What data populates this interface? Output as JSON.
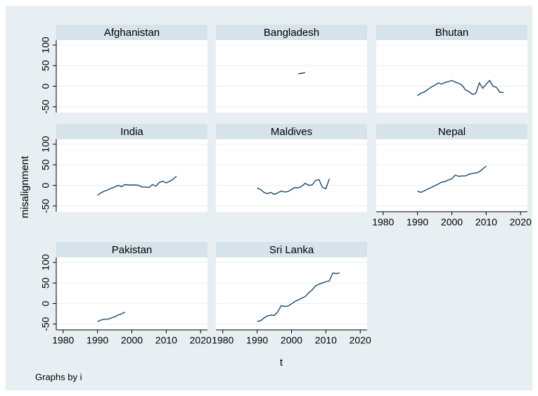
{
  "y_label": "misalignment",
  "x_label": "t",
  "note": "Graphs by i",
  "chart_data": [
    {
      "type": "line",
      "title": "Afghanistan",
      "color": "#1a476f",
      "x": [],
      "values": [],
      "xlim": [
        1978,
        2022
      ],
      "ylim": [
        -64,
        112
      ],
      "yticks": [
        -50,
        0,
        50,
        100
      ]
    },
    {
      "type": "line",
      "title": "Bangladesh",
      "color": "#1a476f",
      "x": [
        2002,
        2004
      ],
      "values": [
        30,
        33
      ],
      "xlim": [
        1978,
        2022
      ],
      "ylim": [
        -64,
        112
      ],
      "yticks": [
        -50,
        0,
        50,
        100
      ]
    },
    {
      "type": "line",
      "title": "Bhutan",
      "color": "#1a476f",
      "x": [
        1990,
        1991,
        1992,
        1993,
        1994,
        1995,
        1996,
        1997,
        1998,
        1999,
        2000,
        2001,
        2002,
        2003,
        2004,
        2005,
        2006,
        2007,
        2008,
        2009,
        2010,
        2011,
        2012,
        2013,
        2014,
        2015
      ],
      "values": [
        -23,
        -17,
        -14,
        -8,
        -2,
        2,
        8,
        5,
        9,
        11,
        14,
        10,
        7,
        2,
        -9,
        -13,
        -20,
        -17,
        8,
        -5,
        5,
        14,
        0,
        -3,
        -15,
        -15
      ],
      "xlim": [
        1978,
        2022
      ],
      "ylim": [
        -64,
        112
      ],
      "yticks": [
        -50,
        0,
        50,
        100
      ]
    },
    {
      "type": "line",
      "title": "India",
      "color": "#1a476f",
      "x": [
        1990,
        1991,
        1992,
        1993,
        1994,
        1995,
        1996,
        1997,
        1998,
        1999,
        2000,
        2001,
        2002,
        2003,
        2004,
        2005,
        2006,
        2007,
        2008,
        2009,
        2010,
        2011,
        2012,
        2013
      ],
      "values": [
        -24,
        -18,
        -14,
        -11,
        -7,
        -4,
        0,
        -3,
        2,
        1,
        1,
        1,
        0,
        -4,
        -4,
        -5,
        2,
        -2,
        7,
        10,
        6,
        10,
        15,
        22
      ],
      "xlim": [
        1978,
        2022
      ],
      "ylim": [
        -64,
        112
      ],
      "yticks": [
        -50,
        0,
        50,
        100
      ]
    },
    {
      "type": "line",
      "title": "Maldives",
      "color": "#1a476f",
      "x": [
        1990,
        1991,
        1992,
        1993,
        1994,
        1995,
        1996,
        1997,
        1998,
        1999,
        2000,
        2001,
        2002,
        2003,
        2004,
        2005,
        2006,
        2007,
        2008,
        2009,
        2010,
        2011
      ],
      "values": [
        -6,
        -10,
        -17,
        -20,
        -17,
        -22,
        -18,
        -14,
        -16,
        -15,
        -10,
        -5,
        -6,
        -2,
        5,
        0,
        1,
        12,
        14,
        -5,
        -8,
        16
      ],
      "xlim": [
        1978,
        2022
      ],
      "ylim": [
        -64,
        112
      ],
      "yticks": [
        -50,
        0,
        50,
        100
      ]
    },
    {
      "type": "line",
      "title": "Nepal",
      "color": "#1a476f",
      "x": [
        1990,
        1991,
        1992,
        1993,
        1994,
        1995,
        1996,
        1997,
        1998,
        1999,
        2000,
        2001,
        2002,
        2003,
        2004,
        2005,
        2006,
        2007,
        2008,
        2009,
        2010
      ],
      "values": [
        -14,
        -17,
        -13,
        -9,
        -5,
        -1,
        3,
        8,
        9,
        13,
        16,
        25,
        22,
        23,
        23,
        27,
        29,
        30,
        33,
        40,
        47
      ],
      "xlim": [
        1978,
        2022
      ],
      "ylim": [
        -64,
        112
      ],
      "yticks": [
        -50,
        0,
        50,
        100
      ],
      "xticks": [
        1980,
        1990,
        2000,
        2010,
        2020
      ]
    },
    {
      "type": "line",
      "title": "Pakistan",
      "color": "#1a476f",
      "x": [
        1990,
        1991,
        1992,
        1993,
        1994,
        1995,
        1996,
        1997,
        1998
      ],
      "values": [
        -44,
        -40,
        -38,
        -38,
        -35,
        -32,
        -28,
        -25,
        -21
      ],
      "xlim": [
        1978,
        2022
      ],
      "ylim": [
        -64,
        112
      ],
      "yticks": [
        -50,
        0,
        50,
        100
      ],
      "xticks": [
        1980,
        1990,
        2000,
        2010,
        2020
      ]
    },
    {
      "type": "line",
      "title": "Sri Lanka",
      "color": "#1a476f",
      "x": [
        1990,
        1991,
        1992,
        1993,
        1994,
        1995,
        1996,
        1997,
        1998,
        1999,
        2000,
        2001,
        2002,
        2003,
        2004,
        2005,
        2006,
        2007,
        2008,
        2009,
        2010,
        2011,
        2012,
        2013,
        2014
      ],
      "values": [
        -43,
        -42,
        -35,
        -30,
        -28,
        -29,
        -20,
        -5,
        -7,
        -6,
        -1,
        5,
        9,
        13,
        17,
        26,
        33,
        43,
        47,
        50,
        53,
        55,
        74,
        73,
        74
      ],
      "xlim": [
        1978,
        2022
      ],
      "ylim": [
        -64,
        112
      ],
      "yticks": [
        -50,
        0,
        50,
        100
      ],
      "xticks": [
        1980,
        1990,
        2000,
        2010,
        2020
      ]
    }
  ]
}
